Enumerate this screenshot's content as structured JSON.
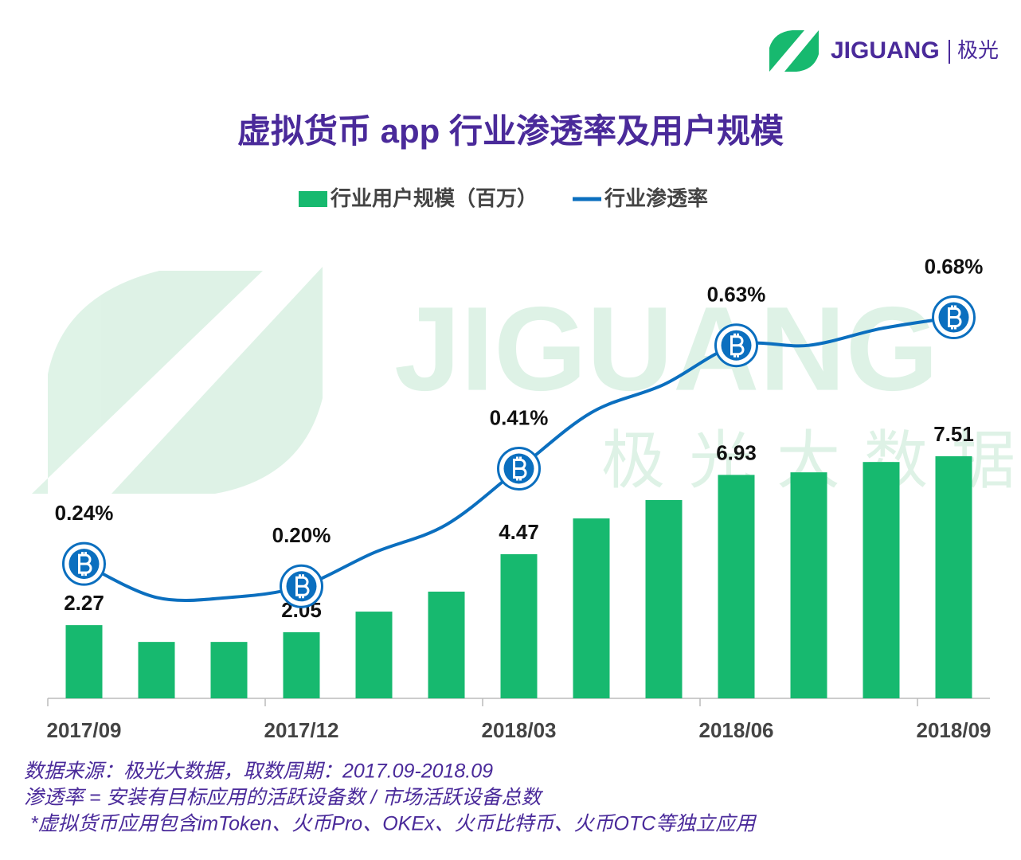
{
  "chart_data": {
    "type": "bar_line",
    "title": "虚拟货币 app 行业渗透率及用户规模",
    "logo": {
      "brand": "JIGUANG",
      "name": "极光"
    },
    "watermark": {
      "brand": "JIGUANG",
      "tagline": "极光大数据"
    },
    "categories": [
      "2017/09",
      null,
      null,
      "2017/12",
      null,
      null,
      "2018/03",
      null,
      null,
      "2018/06",
      null,
      null,
      "2018/09"
    ],
    "series": [
      {
        "name": "行业用户规模（百万）",
        "type": "bar",
        "color": "#17b96f",
        "values": [
          2.27,
          1.75,
          1.75,
          2.05,
          2.69,
          3.31,
          4.47,
          5.58,
          6.15,
          6.93,
          7.01,
          7.33,
          7.51
        ],
        "value_labels": [
          "2.27",
          null,
          null,
          "2.05",
          null,
          null,
          "4.47",
          null,
          null,
          "6.93",
          null,
          null,
          "7.51"
        ]
      },
      {
        "name": "行业渗透率",
        "type": "line",
        "axis": "y2",
        "color": "#0b6fbf",
        "values": [
          0.24,
          0.18,
          0.18,
          0.2,
          0.26,
          0.31,
          0.41,
          0.51,
          0.56,
          0.63,
          0.63,
          0.66,
          0.68
        ],
        "value_labels": [
          "0.24%",
          null,
          null,
          "0.20%",
          null,
          null,
          "0.41%",
          null,
          null,
          "0.63%",
          null,
          null,
          "0.68%"
        ]
      }
    ],
    "ylim": [
      0,
      14.25
    ],
    "y2lim": [
      0,
      0.82
    ],
    "notes": [
      "数据来源：极光大数据，取数周期：2017.09-2018.09",
      "渗透率 = 安装有目标应用的活跃设备数 / 市场活跃设备总数",
      "*虚拟货币应用包含imToken、火币Pro、OKEx、火币比特币、火币OTC等独立应用"
    ]
  }
}
